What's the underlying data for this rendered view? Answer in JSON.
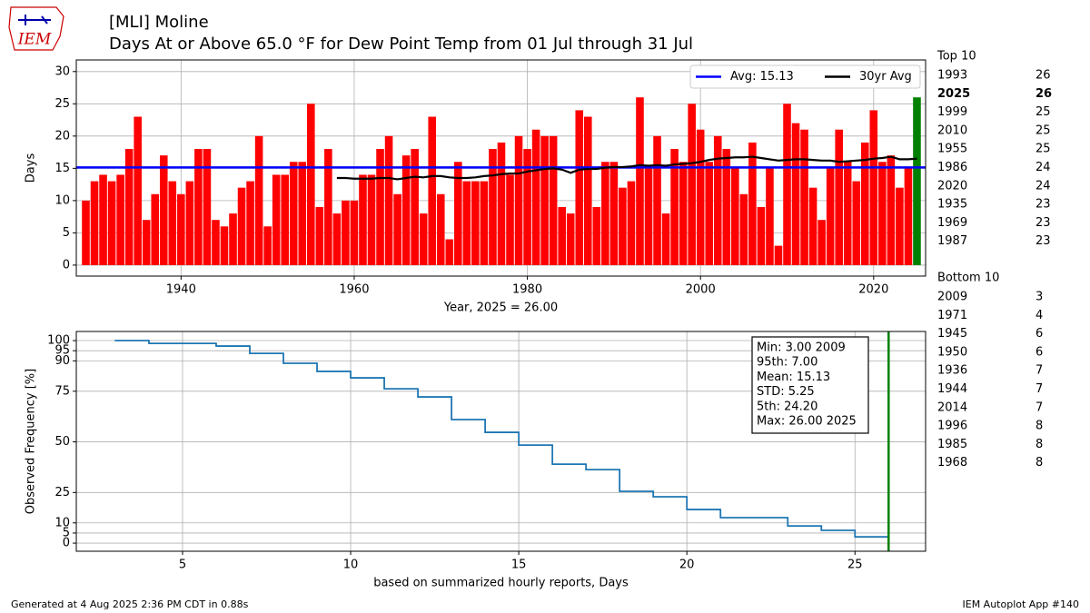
{
  "header": {
    "logo": "IEM",
    "title": "[MLI] Moline",
    "subtitle": "Days At or Above 65.0 °F for Dew Point Temp from 01 Jul through 31 Jul"
  },
  "chart_data": [
    {
      "type": "bar",
      "x": [
        1929,
        1930,
        1931,
        1932,
        1933,
        1934,
        1935,
        1936,
        1937,
        1938,
        1939,
        1940,
        1941,
        1942,
        1943,
        1944,
        1945,
        1946,
        1947,
        1948,
        1949,
        1950,
        1951,
        1952,
        1953,
        1954,
        1955,
        1956,
        1957,
        1958,
        1959,
        1960,
        1961,
        1962,
        1963,
        1964,
        1965,
        1966,
        1967,
        1968,
        1969,
        1970,
        1971,
        1972,
        1973,
        1974,
        1975,
        1976,
        1977,
        1978,
        1979,
        1980,
        1981,
        1982,
        1983,
        1984,
        1985,
        1986,
        1987,
        1988,
        1989,
        1990,
        1991,
        1992,
        1993,
        1994,
        1995,
        1996,
        1997,
        1998,
        1999,
        2000,
        2001,
        2002,
        2003,
        2004,
        2005,
        2006,
        2007,
        2008,
        2009,
        2010,
        2011,
        2012,
        2013,
        2014,
        2015,
        2016,
        2017,
        2018,
        2019,
        2020,
        2021,
        2022,
        2023,
        2024,
        2025
      ],
      "values": [
        10,
        13,
        14,
        13,
        14,
        18,
        23,
        7,
        11,
        17,
        13,
        11,
        13,
        18,
        18,
        7,
        6,
        8,
        12,
        13,
        20,
        6,
        14,
        14,
        16,
        16,
        25,
        9,
        18,
        8,
        10,
        10,
        14,
        14,
        18,
        20,
        11,
        17,
        18,
        8,
        23,
        11,
        4,
        16,
        13,
        13,
        13,
        18,
        19,
        14,
        20,
        18,
        21,
        20,
        20,
        9,
        8,
        24,
        23,
        9,
        16,
        16,
        12,
        13,
        26,
        15,
        20,
        8,
        18,
        16,
        25,
        21,
        16,
        20,
        18,
        15,
        11,
        19,
        9,
        15,
        3,
        25,
        22,
        21,
        12,
        7,
        15,
        21,
        16,
        13,
        19,
        24,
        16,
        17,
        12,
        15,
        26
      ],
      "color": "#ff0000",
      "highlight_x": 2025,
      "highlight_color": "#008000",
      "lines": [
        {
          "name": "Avg: 15.13",
          "value": 15.13,
          "color": "#0000ff"
        },
        {
          "name": "30yr Avg",
          "color": "#000000",
          "x": [
            1958,
            1959,
            1960,
            1961,
            1962,
            1963,
            1964,
            1965,
            1966,
            1967,
            1968,
            1969,
            1970,
            1971,
            1972,
            1973,
            1974,
            1975,
            1976,
            1977,
            1978,
            1979,
            1980,
            1981,
            1982,
            1983,
            1984,
            1985,
            1986,
            1987,
            1988,
            1989,
            1990,
            1991,
            1992,
            1993,
            1994,
            1995,
            1996,
            1997,
            1998,
            1999,
            2000,
            2001,
            2002,
            2003,
            2004,
            2005,
            2006,
            2007,
            2008,
            2009,
            2010,
            2011,
            2012,
            2013,
            2014,
            2015,
            2016,
            2017,
            2018,
            2019,
            2020,
            2021,
            2022,
            2023,
            2024,
            2025
          ],
          "values": [
            13.5,
            13.5,
            13.4,
            13.4,
            13.4,
            13.5,
            13.5,
            13.3,
            13.5,
            13.7,
            13.6,
            13.8,
            13.8,
            13.6,
            13.5,
            13.5,
            13.6,
            13.8,
            13.9,
            14.1,
            14.2,
            14.2,
            14.5,
            14.7,
            14.9,
            15.0,
            14.8,
            14.3,
            14.8,
            14.9,
            14.9,
            15.1,
            15.2,
            15.2,
            15.3,
            15.5,
            15.4,
            15.5,
            15.4,
            15.6,
            15.7,
            15.8,
            16.0,
            16.3,
            16.5,
            16.6,
            16.7,
            16.7,
            16.8,
            16.6,
            16.4,
            16.2,
            16.3,
            16.4,
            16.4,
            16.3,
            16.2,
            16.2,
            16.0,
            16.1,
            16.2,
            16.3,
            16.5,
            16.6,
            16.8,
            16.4,
            16.4,
            16.5
          ]
        }
      ],
      "xlabel": "Year, 2025 = 26.00",
      "ylabel": "Days",
      "xlim": [
        1927.9,
        2026.0
      ],
      "ylim": [
        -1.7,
        31.8
      ],
      "xticks": [
        1940,
        1960,
        1980,
        2000,
        2020
      ],
      "yticks": [
        0,
        5,
        10,
        15,
        20,
        25,
        30
      ],
      "grid": true,
      "legend": "upper right"
    },
    {
      "type": "line",
      "step": true,
      "x": [
        3,
        4,
        6,
        7,
        8,
        9,
        10,
        11,
        12,
        13,
        14,
        15,
        16,
        17,
        18,
        19,
        20,
        21,
        23,
        24,
        25,
        26
      ],
      "series": [
        {
          "color": "#1f77b4",
          "values": [
            100,
            98.6,
            97.3,
            93.7,
            88.8,
            84.8,
            81.6,
            76.2,
            72.2,
            61,
            54.7,
            48.4,
            39,
            36.3,
            25.6,
            22.9,
            16.6,
            12.6,
            8.5,
            6.3,
            3.1,
            2
          ]
        }
      ],
      "vline": {
        "value": 26,
        "color": "#008000"
      },
      "annotation": [
        "Min: 3.00 2009",
        "95th: 7.00",
        "Mean: 15.13",
        "STD: 5.25",
        "5th: 24.20",
        "Max: 26.00 2025"
      ],
      "xlabel": "based on summarized hourly reports, Days",
      "ylabel": "Observed Frequency [%]",
      "xlim": [
        1.84,
        27.1
      ],
      "ylim": [
        -4.0,
        104.5
      ],
      "xticks": [
        5,
        10,
        15,
        20,
        25
      ],
      "yticks": [
        0,
        5,
        10,
        25,
        50,
        75,
        90,
        95,
        100
      ],
      "grid": true
    }
  ],
  "top10": {
    "title": "Top 10",
    "rows": [
      {
        "year": 1993,
        "value": 26
      },
      {
        "year": 2025,
        "value": 26,
        "bold": true
      },
      {
        "year": 1999,
        "value": 25
      },
      {
        "year": 2010,
        "value": 25
      },
      {
        "year": 1955,
        "value": 25
      },
      {
        "year": 1986,
        "value": 24
      },
      {
        "year": 2020,
        "value": 24
      },
      {
        "year": 1935,
        "value": 23
      },
      {
        "year": 1969,
        "value": 23
      },
      {
        "year": 1987,
        "value": 23
      }
    ]
  },
  "bottom10": {
    "title": "Bottom 10",
    "rows": [
      {
        "year": 2009,
        "value": 3
      },
      {
        "year": 1971,
        "value": 4
      },
      {
        "year": 1945,
        "value": 6
      },
      {
        "year": 1950,
        "value": 6
      },
      {
        "year": 1936,
        "value": 7
      },
      {
        "year": 1944,
        "value": 7
      },
      {
        "year": 2014,
        "value": 7
      },
      {
        "year": 1996,
        "value": 8
      },
      {
        "year": 1985,
        "value": 8
      },
      {
        "year": 1968,
        "value": 8
      }
    ]
  },
  "footer": {
    "left": "Generated at 4 Aug 2025 2:36 PM CDT in 0.88s",
    "right": "IEM Autoplot App #140"
  }
}
